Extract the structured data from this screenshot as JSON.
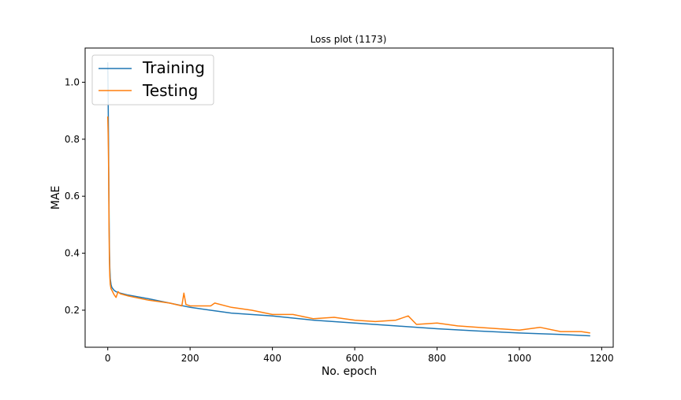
{
  "chart_data": {
    "type": "line",
    "title": "Loss plot (1173)",
    "xlabel": "No. epoch",
    "ylabel": "MAE",
    "xlim": [
      -55,
      1228
    ],
    "ylim": [
      0.07,
      1.12
    ],
    "xticks": [
      0,
      200,
      400,
      600,
      800,
      1000,
      1200
    ],
    "yticks": [
      0.2,
      0.4,
      0.6,
      0.8,
      1.0
    ],
    "xtick_labels": [
      "0",
      "200",
      "400",
      "600",
      "800",
      "1000",
      "1200"
    ],
    "ytick_labels": [
      "0.2",
      "0.4",
      "0.6",
      "0.8",
      "1.0"
    ],
    "grid": false,
    "legend_position": "upper-left",
    "series": [
      {
        "name": "Training",
        "color": "#1f77b4",
        "x": [
          0,
          1,
          2,
          3,
          4,
          5,
          6,
          8,
          10,
          15,
          20,
          30,
          50,
          100,
          150,
          200,
          250,
          300,
          400,
          500,
          600,
          700,
          800,
          900,
          1000,
          1100,
          1172
        ],
        "y": [
          1.07,
          0.95,
          0.75,
          0.55,
          0.42,
          0.35,
          0.31,
          0.29,
          0.28,
          0.27,
          0.265,
          0.26,
          0.253,
          0.24,
          0.225,
          0.21,
          0.2,
          0.19,
          0.18,
          0.165,
          0.155,
          0.145,
          0.135,
          0.127,
          0.12,
          0.115,
          0.11
        ]
      },
      {
        "name": "Testing",
        "color": "#ff7f0e",
        "x": [
          0,
          1,
          2,
          3,
          4,
          5,
          6,
          8,
          10,
          15,
          20,
          25,
          30,
          50,
          100,
          150,
          180,
          185,
          190,
          200,
          250,
          260,
          300,
          350,
          400,
          450,
          500,
          550,
          600,
          650,
          700,
          730,
          750,
          800,
          850,
          900,
          950,
          1000,
          1050,
          1100,
          1150,
          1172
        ],
        "y": [
          0.88,
          0.82,
          0.7,
          0.5,
          0.38,
          0.32,
          0.29,
          0.275,
          0.27,
          0.255,
          0.245,
          0.265,
          0.258,
          0.25,
          0.235,
          0.225,
          0.215,
          0.26,
          0.22,
          0.215,
          0.215,
          0.225,
          0.21,
          0.2,
          0.185,
          0.185,
          0.17,
          0.175,
          0.165,
          0.16,
          0.165,
          0.18,
          0.15,
          0.155,
          0.145,
          0.14,
          0.135,
          0.13,
          0.14,
          0.125,
          0.125,
          0.12
        ]
      }
    ]
  }
}
